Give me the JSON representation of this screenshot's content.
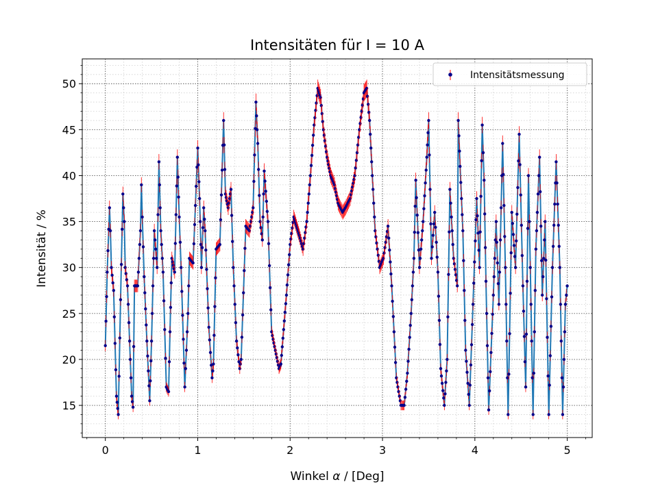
{
  "chart_data": {
    "type": "line",
    "title": "Intensitäten für I = 10 A",
    "xlabel_prefix": "Winkel ",
    "xlabel_symbol": "α",
    "xlabel_suffix": " / [Deg]",
    "ylabel": "Intensität / %",
    "xlim": [
      -0.25,
      5.27
    ],
    "ylim": [
      11.5,
      52.7
    ],
    "x_ticks": [
      0,
      1,
      2,
      3,
      4,
      5
    ],
    "x_tick_labels": [
      "0",
      "1",
      "2",
      "3",
      "4",
      "5"
    ],
    "y_ticks": [
      15,
      20,
      25,
      30,
      35,
      40,
      45,
      50
    ],
    "y_tick_labels": [
      "15",
      "20",
      "25",
      "30",
      "35",
      "40",
      "45",
      "50"
    ],
    "grid": "major dotted, minor dotted",
    "legend": {
      "placement": "top-right",
      "entries": [
        "Intensitätsmessung"
      ]
    },
    "colors": {
      "line": "#1f77b4",
      "marker": "#00008b",
      "errorbar": "#ff0000"
    },
    "series": [
      {
        "name": "Intensitätsmessung",
        "x": [
          0.0,
          0.02,
          0.045,
          0.055,
          0.065,
          0.09,
          0.12,
          0.14,
          0.165,
          0.19,
          0.205,
          0.215,
          0.24,
          0.285,
          0.3,
          0.315,
          0.35,
          0.38,
          0.39,
          0.4,
          0.42,
          0.45,
          0.48,
          0.5,
          0.53,
          0.56,
          0.58,
          0.6,
          0.625,
          0.66,
          0.685,
          0.7,
          0.72,
          0.75,
          0.78,
          0.8,
          0.82,
          0.86,
          0.895,
          0.91,
          0.95,
          1.0,
          1.02,
          1.04,
          1.065,
          1.08,
          1.12,
          1.155,
          1.17,
          1.2,
          1.24,
          1.28,
          1.3,
          1.33,
          1.36,
          1.385,
          1.42,
          1.455,
          1.47,
          1.52,
          1.56,
          1.6,
          1.63,
          1.65,
          1.675,
          1.7,
          1.72,
          1.76,
          1.8,
          1.84,
          1.88,
          1.9,
          1.96,
          2.0,
          2.04,
          2.07,
          2.1,
          2.14,
          2.18,
          2.22,
          2.26,
          2.3,
          2.33,
          2.36,
          2.4,
          2.44,
          2.48,
          2.52,
          2.57,
          2.6,
          2.65,
          2.7,
          2.75,
          2.8,
          2.83,
          2.86,
          2.89,
          2.92,
          2.97,
          3.01,
          3.06,
          3.1,
          3.15,
          3.2,
          3.235,
          3.27,
          3.31,
          3.34,
          3.36,
          3.4,
          3.44,
          3.48,
          3.5,
          3.53,
          3.565,
          3.6,
          3.63,
          3.67,
          3.7,
          3.73,
          3.77,
          3.81,
          3.82,
          3.84,
          3.87,
          3.9,
          3.94,
          3.98,
          4.02,
          4.05,
          4.08,
          4.1,
          4.12,
          4.15,
          4.2,
          4.23,
          4.26,
          4.3,
          4.33,
          4.36,
          4.4,
          4.44,
          4.48,
          4.52,
          4.55,
          4.58,
          4.6,
          4.63,
          4.66,
          4.7,
          4.73,
          4.76,
          4.8,
          4.84,
          4.88,
          4.92,
          4.95,
          4.98,
          5.0
        ],
        "y": [
          21.5,
          29.5,
          36.5,
          34.0,
          30.0,
          27.5,
          16.0,
          14.0,
          26.5,
          38.0,
          35.0,
          30.0,
          28.0,
          16.0,
          14.8,
          28.0,
          28.0,
          34.0,
          39.0,
          35.5,
          29.0,
          22.0,
          15.5,
          22.0,
          34.0,
          30.0,
          41.5,
          34.0,
          29.5,
          17.0,
          16.5,
          23.0,
          31.0,
          29.5,
          42.0,
          35.5,
          30.0,
          17.0,
          25.0,
          31.0,
          30.5,
          43.0,
          37.5,
          30.0,
          36.5,
          34.0,
          23.5,
          18.0,
          19.5,
          32.0,
          32.5,
          46.0,
          38.0,
          36.5,
          38.5,
          30.0,
          22.0,
          19.0,
          20.0,
          34.5,
          34.0,
          36.5,
          48.0,
          43.5,
          35.0,
          33.0,
          40.5,
          35.0,
          23.0,
          21.0,
          19.0,
          19.5,
          27.0,
          32.5,
          35.5,
          34.5,
          33.5,
          32.0,
          35.0,
          40.0,
          45.5,
          49.5,
          48.5,
          45.0,
          42.0,
          40.0,
          39.0,
          37.0,
          36.0,
          36.5,
          37.5,
          40.0,
          45.0,
          49.0,
          49.5,
          46.0,
          40.0,
          34.0,
          30.0,
          31.0,
          34.5,
          28.0,
          18.0,
          15.0,
          15.0,
          18.5,
          25.0,
          31.0,
          39.5,
          30.0,
          35.0,
          42.0,
          46.0,
          31.0,
          36.0,
          29.5,
          19.0,
          15.0,
          20.0,
          38.5,
          31.0,
          28.0,
          46.0,
          41.0,
          34.0,
          21.0,
          15.0,
          26.0,
          37.5,
          30.0,
          45.5,
          39.5,
          28.5,
          14.5,
          27.0,
          35.0,
          26.0,
          43.5,
          30.0,
          14.0,
          36.0,
          30.0,
          44.5,
          28.0,
          17.0,
          40.0,
          30.0,
          14.0,
          32.0,
          42.0,
          27.0,
          35.0,
          14.0,
          30.0,
          41.5,
          30.0,
          14.0,
          26.0,
          28.0
        ]
      }
    ]
  }
}
